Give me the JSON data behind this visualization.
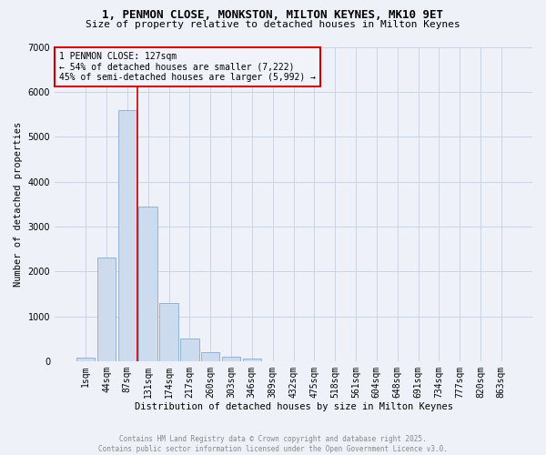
{
  "title_line1": "1, PENMON CLOSE, MONKSTON, MILTON KEYNES, MK10 9ET",
  "title_line2": "Size of property relative to detached houses in Milton Keynes",
  "xlabel": "Distribution of detached houses by size in Milton Keynes",
  "ylabel": "Number of detached properties",
  "bar_values": [
    80,
    2300,
    5600,
    3450,
    1300,
    500,
    200,
    100,
    60,
    0,
    0,
    0,
    0,
    0,
    0,
    0,
    0,
    0,
    0,
    0,
    0
  ],
  "bar_labels": [
    "1sqm",
    "44sqm",
    "87sqm",
    "131sqm",
    "174sqm",
    "217sqm",
    "260sqm",
    "303sqm",
    "346sqm",
    "389sqm",
    "432sqm",
    "475sqm",
    "518sqm",
    "561sqm",
    "604sqm",
    "648sqm",
    "691sqm",
    "734sqm",
    "777sqm",
    "820sqm",
    "863sqm"
  ],
  "bar_color": "#ccdcee",
  "bar_edgecolor": "#88aace",
  "vline_x_idx": 3,
  "vline_color": "#cc0000",
  "annotation_text": "1 PENMON CLOSE: 127sqm\n← 54% of detached houses are smaller (7,222)\n45% of semi-detached houses are larger (5,992) →",
  "annotation_box_facecolor": "#f0f4fa",
  "annotation_box_edgecolor": "#cc0000",
  "ylim": [
    0,
    7000
  ],
  "yticks": [
    0,
    1000,
    2000,
    3000,
    4000,
    5000,
    6000,
    7000
  ],
  "grid_color": "#c8d4e4",
  "background_color": "#eef2f8",
  "footer_text": "Contains HM Land Registry data © Crown copyright and database right 2025.\nContains public sector information licensed under the Open Government Licence v3.0.",
  "footer_color": "#888888",
  "title_fontsize": 9,
  "subtitle_fontsize": 8,
  "axis_label_fontsize": 7.5,
  "tick_fontsize": 7,
  "annot_fontsize": 7,
  "footer_fontsize": 5.5
}
